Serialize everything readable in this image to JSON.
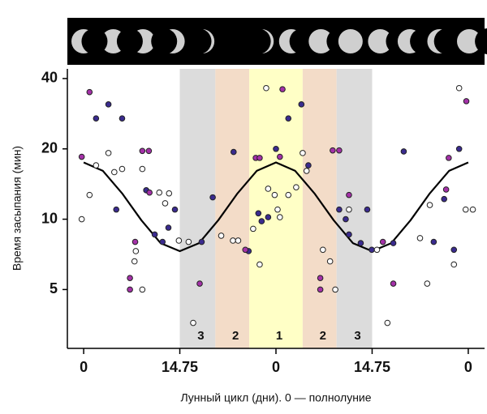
{
  "chart_data": {
    "type": "scatter",
    "ylabel": "Время засыпания (мин)",
    "xlabel": "Лунный цикл (дни). 0 — полнолуние",
    "log_y": true,
    "xlim": [
      -32,
      32
    ],
    "ylim": [
      2.8,
      44
    ],
    "xticks": [
      {
        "value": -29.5,
        "label": "0"
      },
      {
        "value": -14.75,
        "label": "14.75"
      },
      0,
      14.75,
      {
        "value": 29.5,
        "label": "0"
      }
    ],
    "yticks": [
      5,
      10,
      20,
      40
    ],
    "bands": [
      {
        "range": [
          -14.75,
          -9.3
        ],
        "label": "3",
        "color": "#dcdcdc"
      },
      {
        "range": [
          -9.3,
          -4.1
        ],
        "label": "2",
        "color": "#f3dcc8"
      },
      {
        "range": [
          -4.1,
          4.1
        ],
        "label": "1",
        "color": "#ffffc6"
      },
      {
        "range": [
          4.1,
          9.3
        ],
        "label": "2",
        "color": "#f3dcc8"
      },
      {
        "range": [
          9.3,
          14.75
        ],
        "label": "3",
        "color": "#dcdcdc"
      }
    ],
    "series": [
      {
        "color": "#3a2b8f",
        "x": [
          -27.6,
          -25.7,
          -23.6,
          -24.5,
          -19.9,
          -18.6,
          -17.4,
          -16.5,
          -15.5,
          -11.4,
          -9.7,
          -6.5,
          -4.2,
          -2.7,
          -2.2,
          -1.2,
          0,
          1.9,
          3.9,
          4.97,
          9.7,
          10.7,
          11.2,
          13.0,
          14.0,
          14.7,
          18.0,
          19.6,
          24.2,
          25.8,
          27.3,
          28.1
        ],
        "values": [
          27,
          31,
          27,
          11,
          13.3,
          8.6,
          8,
          9.2,
          11,
          8,
          12.4,
          19.4,
          7.3,
          10.6,
          9.8,
          10.2,
          20,
          27,
          31,
          17,
          11,
          10,
          8.6,
          7.9,
          11,
          7.4,
          7.9,
          19.5,
          8.0,
          12.2,
          7.4,
          20
        ]
      },
      {
        "color": "#a431a8",
        "x": [
          -28.6,
          -29.8,
          -20.5,
          -19.5,
          -19.4,
          -21.6,
          -22.4,
          -22.4,
          -11.7,
          -4.7,
          -3.1,
          -2.5,
          1.0,
          0.6,
          6.8,
          6.8,
          8.7,
          9.7,
          11.2,
          16.4,
          18.0,
          26.5,
          26.1,
          29.2
        ],
        "values": [
          35,
          18.5,
          19.6,
          19.6,
          13,
          8,
          5.6,
          5,
          5.3,
          7.4,
          18.3,
          18.3,
          36,
          18.5,
          5.6,
          5,
          19.7,
          19.7,
          12.7,
          8,
          5.3,
          18.3,
          13.4,
          32
        ]
      },
      {
        "color": "#ffffff",
        "x": [
          -29.8,
          -28.6,
          -27.6,
          -25.7,
          -24.8,
          -23.6,
          -21.5,
          -21.7,
          -20.5,
          -20.5,
          -17.9,
          -17.0,
          -16.4,
          -14.9,
          -13.4,
          -12.7,
          -8.4,
          -6.6,
          -5.8,
          -3.5,
          -2.5,
          -1.2,
          -0.2,
          0.25,
          0.6,
          -1.5,
          1.9,
          3.1,
          4.1,
          4.7,
          7.2,
          8.3,
          9.1,
          11.2,
          15.5,
          17.1,
          22.1,
          23.6,
          23.2,
          27.3,
          28.1,
          29.1,
          30.2
        ],
        "values": [
          10,
          12.7,
          17,
          19.2,
          15.9,
          16.4,
          7.3,
          6.6,
          5,
          16.4,
          13,
          11.7,
          12.9,
          8.1,
          8,
          3.6,
          8.5,
          8.1,
          8.1,
          9.1,
          6.4,
          13.5,
          12.7,
          11,
          10.2,
          36.4,
          12.7,
          13.7,
          19.2,
          16.1,
          7.4,
          6.6,
          5,
          11,
          7.4,
          3.6,
          8.3,
          11.5,
          5.3,
          6.4,
          36.4,
          11,
          11
        ]
      }
    ],
    "fit": {
      "color": "#000000",
      "x": [
        -29.5,
        -26.55,
        -23.6,
        -20.65,
        -17.7,
        -14.75,
        -11.8,
        -8.85,
        -5.9,
        -2.95,
        0,
        2.95,
        5.9,
        8.85,
        11.8,
        14.75,
        17.7,
        20.65,
        23.6,
        26.55,
        29.5
      ],
      "values": [
        17.5,
        16.1,
        12.9,
        9.9,
        7.9,
        7.3,
        7.9,
        9.9,
        12.9,
        16.1,
        17.5,
        16.1,
        12.9,
        9.9,
        7.9,
        7.3,
        7.9,
        9.9,
        12.9,
        16.1,
        17.5
      ]
    }
  }
}
